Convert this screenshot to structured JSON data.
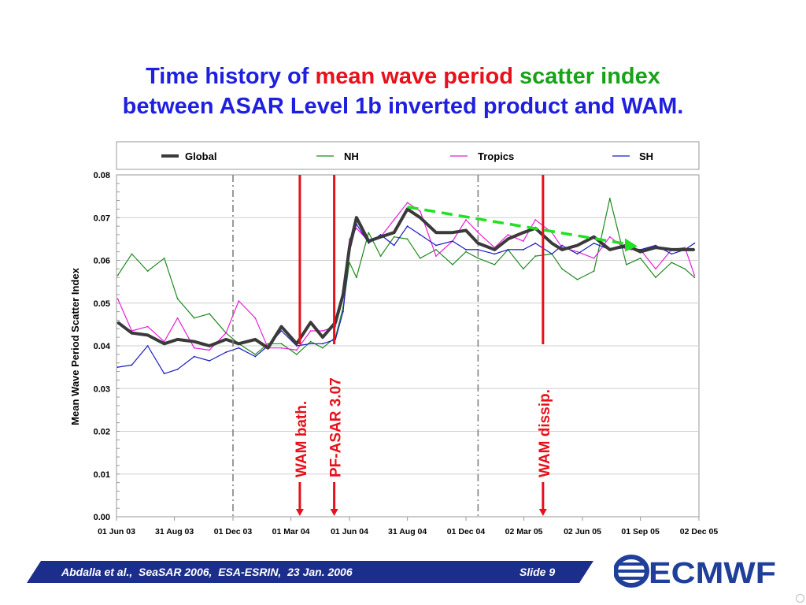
{
  "slide": {
    "title": {
      "line1_a": "Time history of ",
      "line1_b": "mean wave period",
      "line1_c": " scatter index",
      "line2": "between ASAR Level 1b inverted product and WAM."
    },
    "footer": {
      "text": "Abdalla et al.,  SeaSAR 2006,  ESA-ESRIN,  23 Jan. 2006",
      "slide_label": "Slide 9"
    },
    "logo_text": "ECMWF"
  },
  "colors": {
    "title_blue": "#1f1fe0",
    "title_red": "#e8101a",
    "title_green": "#17a317",
    "footer_band": "#1c2e8c",
    "logo_blue": "#1f3f9a"
  },
  "chart_data": {
    "type": "line",
    "title": "",
    "ylabel": "Mean Wave Period    Scatter  Index",
    "xlabel": "",
    "ylim": [
      0,
      0.08
    ],
    "yticks": [
      "0.00",
      "0.01",
      "0.02",
      "0.03",
      "0.04",
      "0.05",
      "0.06",
      "0.07",
      "0.08"
    ],
    "xlim": [
      "2003-06-01",
      "2005-12-02"
    ],
    "xticks": [
      {
        "date": "2003-06-01",
        "label": "01 Jun 03"
      },
      {
        "date": "2003-08-31",
        "label": "31 Aug 03"
      },
      {
        "date": "2003-12-01",
        "label": "01 Dec 03"
      },
      {
        "date": "2004-03-01",
        "label": "01 Mar 04"
      },
      {
        "date": "2004-06-01",
        "label": "01 Jun 04"
      },
      {
        "date": "2004-08-31",
        "label": "31 Aug 04"
      },
      {
        "date": "2004-12-01",
        "label": "01 Dec 04"
      },
      {
        "date": "2005-03-02",
        "label": "02 Mar 05"
      },
      {
        "date": "2005-06-02",
        "label": "02 Jun 05"
      },
      {
        "date": "2005-09-01",
        "label": "01 Sep 05"
      },
      {
        "date": "2005-12-02",
        "label": "02 Dec 05"
      }
    ],
    "grid": true,
    "legend": {
      "position": "top"
    },
    "series": [
      {
        "name": "Global",
        "color": "#3a3a3a",
        "width": 4,
        "dates": [
          "2003-06-03",
          "2003-06-25",
          "2003-07-20",
          "2003-08-15",
          "2003-09-05",
          "2003-10-01",
          "2003-10-25",
          "2003-11-20",
          "2003-12-10",
          "2004-01-05",
          "2004-01-25",
          "2004-02-15",
          "2004-03-10",
          "2004-04-01",
          "2004-04-20",
          "2004-05-10",
          "2004-05-22",
          "2004-06-01",
          "2004-06-12",
          "2004-07-01",
          "2004-07-20",
          "2004-08-10",
          "2004-08-31",
          "2004-09-20",
          "2004-10-15",
          "2004-11-10",
          "2004-12-01",
          "2004-12-20",
          "2005-01-15",
          "2005-02-05",
          "2005-03-01",
          "2005-03-20",
          "2005-04-15",
          "2005-05-01",
          "2005-05-25",
          "2005-06-20",
          "2005-07-15",
          "2005-08-10",
          "2005-09-01",
          "2005-09-25",
          "2005-10-20",
          "2005-11-10",
          "2005-11-25"
        ],
        "values": [
          0.0455,
          0.043,
          0.0425,
          0.0405,
          0.0415,
          0.041,
          0.04,
          0.0415,
          0.0405,
          0.0415,
          0.0395,
          0.0445,
          0.0405,
          0.0455,
          0.042,
          0.0455,
          0.052,
          0.063,
          0.07,
          0.0645,
          0.0655,
          0.0665,
          0.072,
          0.07,
          0.0665,
          0.0665,
          0.067,
          0.064,
          0.0625,
          0.065,
          0.0665,
          0.0675,
          0.064,
          0.0625,
          0.0635,
          0.0655,
          0.0625,
          0.0635,
          0.062,
          0.063,
          0.0625,
          0.0625,
          0.0625
        ]
      },
      {
        "name": "NH",
        "color": "#1e8a1e",
        "width": 1.2,
        "dates": [
          "2003-06-03",
          "2003-06-25",
          "2003-07-20",
          "2003-08-15",
          "2003-09-05",
          "2003-10-01",
          "2003-10-25",
          "2003-11-20",
          "2003-12-10",
          "2004-01-05",
          "2004-01-25",
          "2004-02-15",
          "2004-03-10",
          "2004-04-01",
          "2004-04-20",
          "2004-05-10",
          "2004-05-22",
          "2004-06-01",
          "2004-06-12",
          "2004-07-01",
          "2004-07-20",
          "2004-08-10",
          "2004-08-31",
          "2004-09-20",
          "2004-10-15",
          "2004-11-10",
          "2004-12-01",
          "2004-12-20",
          "2005-01-15",
          "2005-02-05",
          "2005-03-01",
          "2005-03-20",
          "2005-04-15",
          "2005-05-01",
          "2005-05-25",
          "2005-06-20",
          "2005-07-15",
          "2005-08-10",
          "2005-09-01",
          "2005-09-25",
          "2005-10-20",
          "2005-11-10",
          "2005-11-25"
        ],
        "values": [
          0.0565,
          0.0615,
          0.0575,
          0.0605,
          0.051,
          0.0465,
          0.0475,
          0.043,
          0.0405,
          0.038,
          0.0405,
          0.0405,
          0.038,
          0.041,
          0.0395,
          0.042,
          0.049,
          0.0595,
          0.056,
          0.0665,
          0.061,
          0.0655,
          0.065,
          0.0605,
          0.0625,
          0.059,
          0.062,
          0.0605,
          0.059,
          0.0625,
          0.058,
          0.061,
          0.0615,
          0.058,
          0.0555,
          0.0575,
          0.0745,
          0.059,
          0.0605,
          0.056,
          0.0595,
          0.058,
          0.056
        ]
      },
      {
        "name": "Tropics",
        "color": "#e81ed8",
        "width": 1.2,
        "dates": [
          "2003-06-03",
          "2003-06-25",
          "2003-07-20",
          "2003-08-15",
          "2003-09-05",
          "2003-10-01",
          "2003-10-25",
          "2003-11-20",
          "2003-12-10",
          "2004-01-05",
          "2004-01-25",
          "2004-02-15",
          "2004-03-10",
          "2004-04-01",
          "2004-04-20",
          "2004-05-10",
          "2004-05-22",
          "2004-06-01",
          "2004-06-12",
          "2004-07-01",
          "2004-07-20",
          "2004-08-10",
          "2004-08-31",
          "2004-09-20",
          "2004-10-15",
          "2004-11-10",
          "2004-12-01",
          "2004-12-20",
          "2005-01-15",
          "2005-02-05",
          "2005-03-01",
          "2005-03-20",
          "2005-04-15",
          "2005-05-01",
          "2005-05-25",
          "2005-06-20",
          "2005-07-15",
          "2005-08-10",
          "2005-09-01",
          "2005-09-25",
          "2005-10-20",
          "2005-11-10",
          "2005-11-25"
        ],
        "values": [
          0.051,
          0.0435,
          0.0445,
          0.041,
          0.0465,
          0.0395,
          0.039,
          0.043,
          0.0505,
          0.0465,
          0.0395,
          0.0395,
          0.039,
          0.0435,
          0.0435,
          0.0445,
          0.053,
          0.065,
          0.0675,
          0.0645,
          0.0655,
          0.0695,
          0.0735,
          0.0715,
          0.061,
          0.0645,
          0.0695,
          0.0665,
          0.063,
          0.066,
          0.0645,
          0.0695,
          0.0665,
          0.063,
          0.062,
          0.0605,
          0.0655,
          0.0625,
          0.0625,
          0.058,
          0.0625,
          0.063,
          0.0565
        ]
      },
      {
        "name": "SH",
        "color": "#1a1ac0",
        "width": 1.2,
        "dates": [
          "2003-06-03",
          "2003-06-25",
          "2003-07-20",
          "2003-08-15",
          "2003-09-05",
          "2003-10-01",
          "2003-10-25",
          "2003-11-20",
          "2003-12-10",
          "2004-01-05",
          "2004-01-25",
          "2004-02-15",
          "2004-03-10",
          "2004-04-01",
          "2004-04-20",
          "2004-05-10",
          "2004-05-22",
          "2004-06-01",
          "2004-06-12",
          "2004-07-01",
          "2004-07-20",
          "2004-08-10",
          "2004-08-31",
          "2004-09-20",
          "2004-10-15",
          "2004-11-10",
          "2004-12-01",
          "2004-12-20",
          "2005-01-15",
          "2005-02-05",
          "2005-03-01",
          "2005-03-20",
          "2005-04-15",
          "2005-05-01",
          "2005-05-25",
          "2005-06-20",
          "2005-07-15",
          "2005-08-10",
          "2005-09-01",
          "2005-09-25",
          "2005-10-20",
          "2005-11-10",
          "2005-11-25"
        ],
        "values": [
          0.035,
          0.0355,
          0.04,
          0.0335,
          0.0345,
          0.0375,
          0.0365,
          0.0385,
          0.0395,
          0.0375,
          0.04,
          0.0435,
          0.04,
          0.0405,
          0.0405,
          0.0415,
          0.048,
          0.062,
          0.0685,
          0.064,
          0.066,
          0.0635,
          0.068,
          0.066,
          0.0635,
          0.0645,
          0.0625,
          0.0625,
          0.0615,
          0.0625,
          0.0625,
          0.064,
          0.0615,
          0.0635,
          0.0615,
          0.064,
          0.0625,
          0.063,
          0.0625,
          0.0635,
          0.0615,
          0.0625,
          0.064
        ]
      }
    ],
    "annotations": [
      {
        "type": "solid_vline",
        "date": "2004-03-15",
        "color": "#e8101a",
        "label": "WAM bath."
      },
      {
        "type": "solid_vline",
        "date": "2004-05-08",
        "color": "#e8101a",
        "label": "PF-ASAR 3.07"
      },
      {
        "type": "solid_vline",
        "date": "2005-04-01",
        "color": "#e8101a",
        "label": "WAM dissip."
      },
      {
        "type": "dashdot_vline",
        "date": "2003-12-01",
        "color": "#808080"
      },
      {
        "type": "dashdot_vline",
        "date": "2004-12-20",
        "color": "#808080"
      },
      {
        "type": "trend_arrow",
        "color": "#22e022",
        "from": {
          "date": "2004-08-31",
          "value": 0.0725
        },
        "to": {
          "date": "2005-08-25",
          "value": 0.0635
        }
      }
    ]
  }
}
